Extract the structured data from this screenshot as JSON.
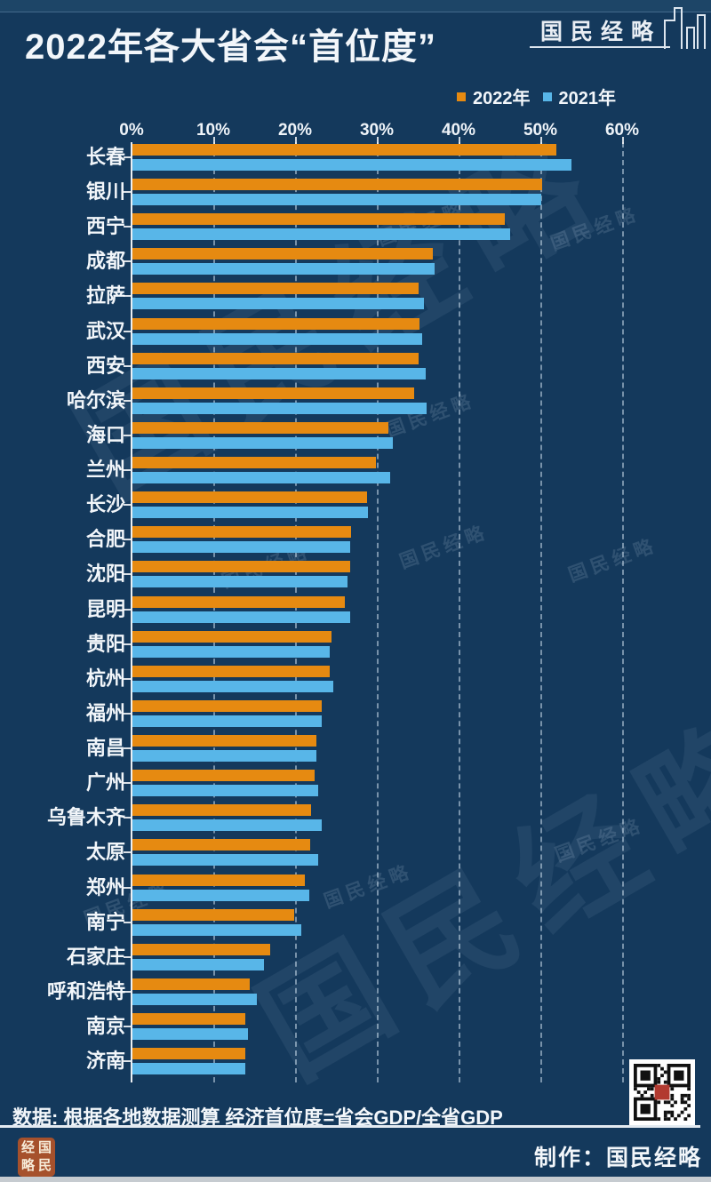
{
  "header": {
    "title": "2022年各大省会“首位度”",
    "brand": "国民经略"
  },
  "legend": {
    "items": [
      {
        "label": "2022年",
        "color": "#E68A11"
      },
      {
        "label": "2021年",
        "color": "#58B6E8"
      }
    ]
  },
  "chart_data": {
    "type": "bar",
    "orientation": "horizontal",
    "title": "2022年各大省会“首位度”",
    "unit": "%",
    "xlim": [
      0,
      60
    ],
    "x_ticks": [
      "0%",
      "10%",
      "20%",
      "30%",
      "40%",
      "50%",
      "60%"
    ],
    "grid": "vertical-dashed",
    "legend_position": "top-right",
    "categories": [
      "长春",
      "银川",
      "西宁",
      "成都",
      "拉萨",
      "武汉",
      "西安",
      "哈尔滨",
      "海口",
      "兰州",
      "长沙",
      "合肥",
      "沈阳",
      "昆明",
      "贵阳",
      "杭州",
      "福州",
      "南昌",
      "广州",
      "乌鲁木齐",
      "太原",
      "郑州",
      "南宁",
      "石家庄",
      "呼和浩特",
      "南京",
      "济南"
    ],
    "series": [
      {
        "name": "2022年",
        "color": "#E68A11",
        "values": [
          51.9,
          50.1,
          45.5,
          36.7,
          35.0,
          35.1,
          35.0,
          34.5,
          31.3,
          29.8,
          28.7,
          26.7,
          26.6,
          26.0,
          24.4,
          24.1,
          23.2,
          22.5,
          22.3,
          21.9,
          21.7,
          21.1,
          19.8,
          16.8,
          14.4,
          13.8,
          13.8
        ]
      },
      {
        "name": "2021年",
        "color": "#58B6E8",
        "values": [
          53.7,
          50.0,
          46.2,
          37.0,
          35.7,
          35.4,
          35.9,
          36.0,
          31.8,
          31.5,
          28.8,
          26.6,
          26.3,
          26.6,
          24.1,
          24.6,
          23.2,
          22.5,
          22.7,
          23.1,
          22.7,
          21.6,
          20.7,
          16.1,
          15.2,
          14.1,
          13.8
        ]
      }
    ]
  },
  "watermark": {
    "text": "国民经略"
  },
  "footer": {
    "source": "数据: 根据各地数据测算 经济首位度=省会GDP/全省GDP",
    "credit": "制作：国民经略",
    "seal_chars": [
      "经",
      "国",
      "略",
      "民"
    ]
  },
  "colors": {
    "background": "#14395C",
    "top_strip": "#1D4567",
    "bar_2022": "#E68A11",
    "bar_2021": "#58B6E8",
    "seal": "#A6512C",
    "bottom_strip": "#C6CBD0"
  }
}
